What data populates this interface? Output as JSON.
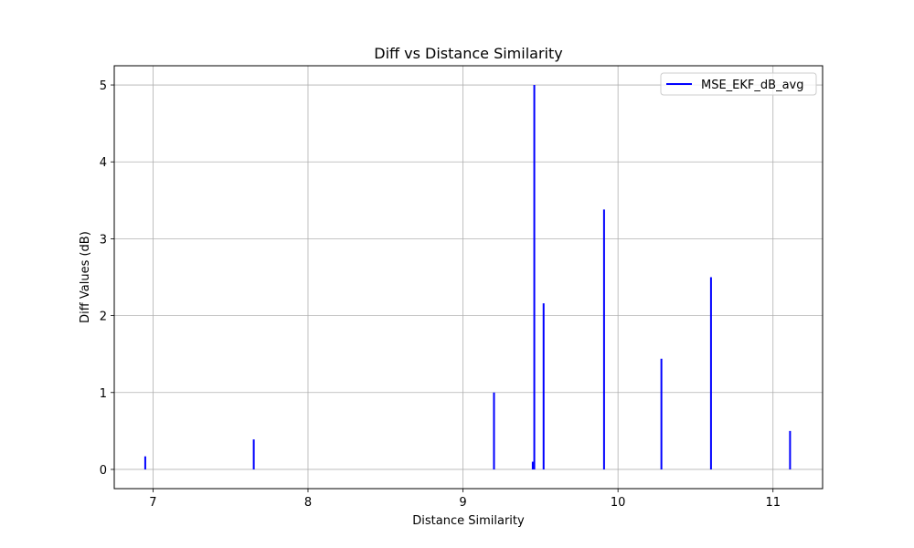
{
  "chart_data": {
    "type": "bar",
    "title": "Diff vs Distance Similarity",
    "xlabel": "Distance Similarity",
    "ylabel": "Diff Values (dB)",
    "xlim": [
      6.75,
      11.32
    ],
    "ylim": [
      -0.25,
      5.25
    ],
    "xticks": [
      7,
      8,
      9,
      10,
      11
    ],
    "yticks": [
      0,
      1,
      2,
      3,
      4,
      5
    ],
    "grid": true,
    "legend_position": "top-right",
    "series": [
      {
        "name": "MSE_EKF_dB_avg",
        "color": "#0000ff",
        "points": [
          {
            "x": 6.95,
            "y": 0.17
          },
          {
            "x": 7.65,
            "y": 0.39
          },
          {
            "x": 9.2,
            "y": 1.0
          },
          {
            "x": 9.45,
            "y": 0.1
          },
          {
            "x": 9.46,
            "y": 5.0
          },
          {
            "x": 9.52,
            "y": 2.16
          },
          {
            "x": 9.91,
            "y": 3.38
          },
          {
            "x": 10.28,
            "y": 1.44
          },
          {
            "x": 10.6,
            "y": 2.5
          },
          {
            "x": 11.11,
            "y": 0.5
          }
        ]
      }
    ]
  }
}
